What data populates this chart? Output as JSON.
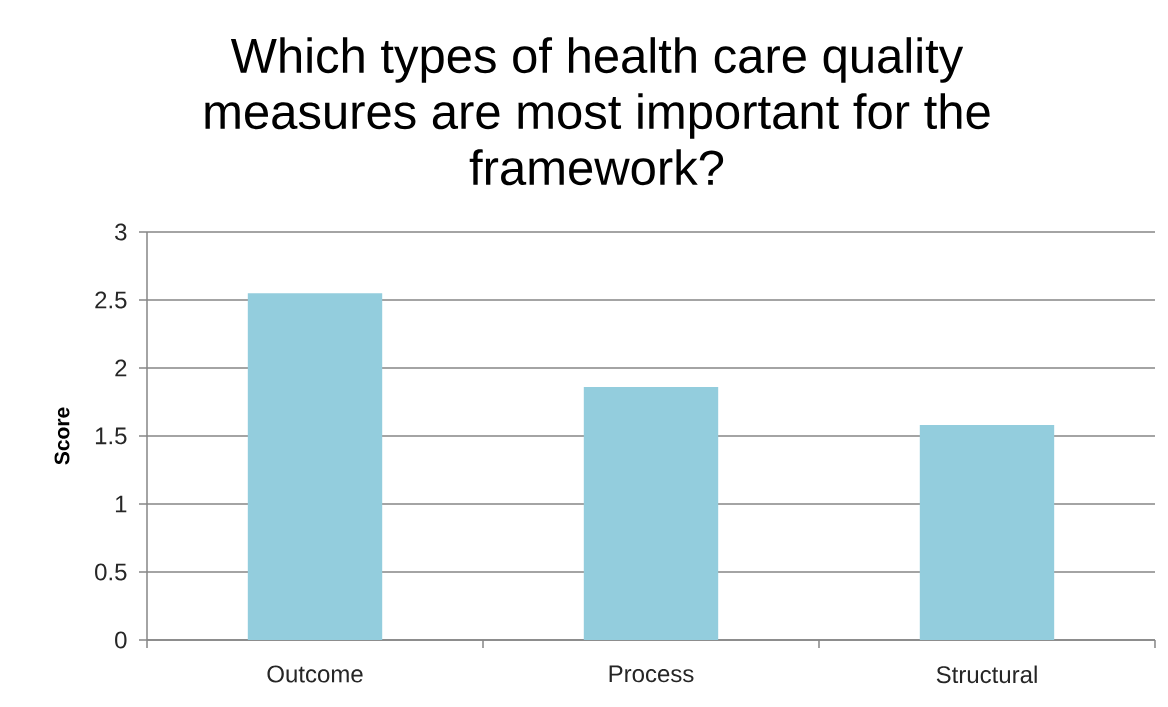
{
  "chart_data": {
    "type": "bar",
    "title": "Which types of health care quality measures are most important for the framework?",
    "ylabel": "Score",
    "categories": [
      "Outcome",
      "Process",
      "Structural"
    ],
    "values": [
      2.55,
      1.86,
      1.58
    ],
    "color": "#93cddd",
    "ylim": [
      0,
      3
    ],
    "yticks": [
      0,
      0.5,
      1,
      1.5,
      2,
      2.5,
      3
    ],
    "grid": "y"
  }
}
